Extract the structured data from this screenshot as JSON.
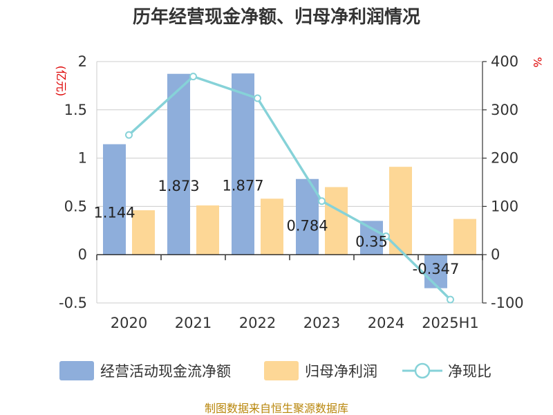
{
  "chart_data": {
    "type": "bar",
    "title": "历年经营现金净额、归母净利润情况",
    "categories": [
      "2020",
      "2021",
      "2022",
      "2023",
      "2024",
      "2025H1"
    ],
    "left_axis": {
      "unit_label": "(亿元)",
      "ylim": [
        -0.5,
        2
      ],
      "ticks": [
        "2",
        "1.5",
        "1",
        "0.5",
        "0",
        "-0.5"
      ],
      "tick_values": [
        2,
        1.5,
        1,
        0.5,
        0,
        -0.5
      ]
    },
    "right_axis": {
      "unit_label": "%",
      "ylim": [
        -100,
        400
      ],
      "ticks": [
        "400",
        "300",
        "200",
        "100",
        "0",
        "-100"
      ],
      "tick_values": [
        400,
        300,
        200,
        100,
        0,
        -100
      ]
    },
    "series": [
      {
        "name": "经营活动现金流净额",
        "type": "bar",
        "axis": "left",
        "color": "#8eaedb",
        "values": [
          1.144,
          1.873,
          1.877,
          0.784,
          0.35,
          -0.347
        ],
        "labels": [
          "1.144",
          "1.873",
          "1.877",
          "0.784",
          "0.35",
          "-0.347"
        ]
      },
      {
        "name": "归母净利润",
        "type": "bar",
        "axis": "left",
        "color": "#fdd796",
        "values": [
          0.46,
          0.51,
          0.58,
          0.7,
          0.91,
          0.37
        ]
      },
      {
        "name": "净现比",
        "type": "line",
        "axis": "right",
        "color": "#86d2d8",
        "values": [
          248,
          369,
          324,
          111,
          38,
          -93
        ]
      }
    ],
    "grid": true,
    "legend_position": "bottom"
  },
  "source_text": "制图数据来自恒生聚源数据库"
}
